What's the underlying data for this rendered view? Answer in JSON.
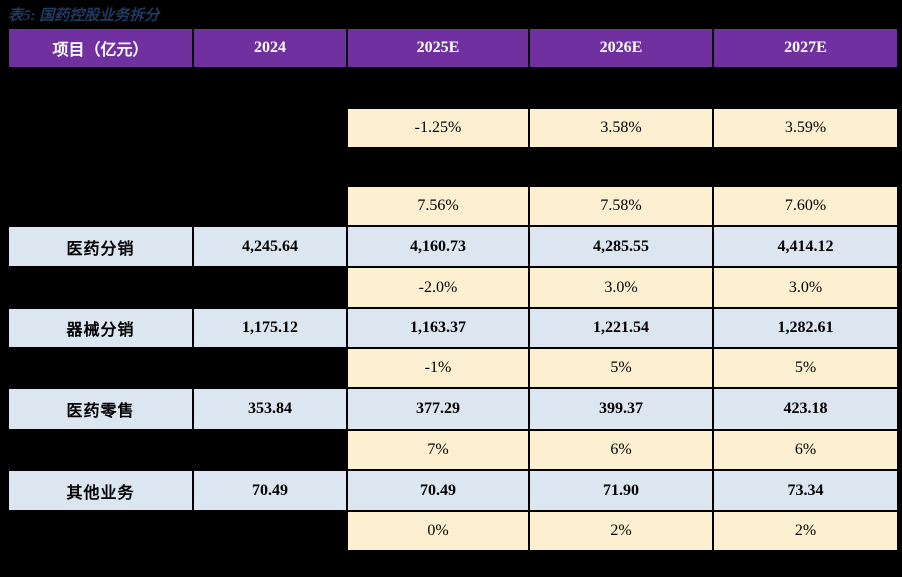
{
  "title": "表5: 国药控股业务拆分",
  "colors": {
    "page_background": "#000000",
    "header_background": "#7030A0",
    "header_text": "#FFFFFF",
    "growth_cell_background": "#FDF0D0",
    "data_cell_background": "#DCE6F1",
    "title_text": "#1F3A62",
    "cell_text": "#000000"
  },
  "table": {
    "headers": [
      "项目（亿元）",
      "2024",
      "2025E",
      "2026E",
      "2027E"
    ],
    "rows": [
      {
        "kind": "spacer"
      },
      {
        "kind": "growth",
        "values": [
          "-1.25%",
          "3.58%",
          "3.59%"
        ]
      },
      {
        "kind": "spacer"
      },
      {
        "kind": "growth",
        "values": [
          "7.56%",
          "7.58%",
          "7.60%"
        ]
      },
      {
        "kind": "data",
        "label": "医药分销",
        "values": [
          "4,245.64",
          "4,160.73",
          "4,285.55",
          "4,414.12"
        ]
      },
      {
        "kind": "growth",
        "values": [
          "-2.0%",
          "3.0%",
          "3.0%"
        ]
      },
      {
        "kind": "data",
        "label": "器械分销",
        "values": [
          "1,175.12",
          "1,163.37",
          "1,221.54",
          "1,282.61"
        ]
      },
      {
        "kind": "growth",
        "values": [
          "-1%",
          "5%",
          "5%"
        ]
      },
      {
        "kind": "data",
        "label": "医药零售",
        "values": [
          "353.84",
          "377.29",
          "399.37",
          "423.18"
        ]
      },
      {
        "kind": "growth",
        "values": [
          "7%",
          "6%",
          "6%"
        ]
      },
      {
        "kind": "data",
        "label": "其他业务",
        "values": [
          "70.49",
          "70.49",
          "71.90",
          "73.34"
        ]
      },
      {
        "kind": "growth",
        "values": [
          "0%",
          "2%",
          "2%"
        ]
      }
    ]
  }
}
